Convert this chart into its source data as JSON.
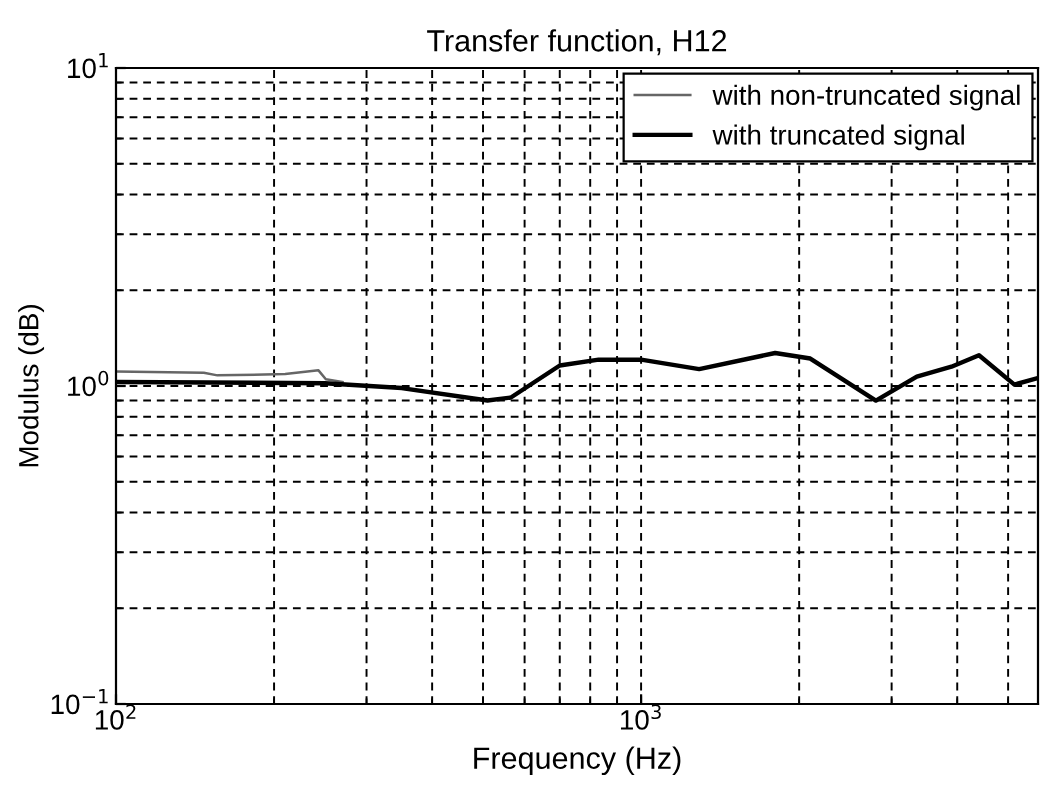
{
  "chart_data": {
    "type": "line",
    "title": "Transfer function, H12",
    "xlabel": "Frequency (Hz)",
    "ylabel": "Modulus (dB)",
    "log": "xy",
    "grid": true,
    "legend": "top right",
    "line_style": "solid",
    "marker": "none",
    "xlim": [
      100,
      5700
    ],
    "ylim": [
      0.1,
      10
    ],
    "xticks": [
      {
        "value": 100,
        "label": "10$^{2}$"
      },
      {
        "value": 1000,
        "label": "10$^{3}$"
      }
    ],
    "yticks": [
      {
        "value": 0.1,
        "label": "10$^{−1}$"
      },
      {
        "value": 1,
        "label": "10$^{0}$"
      },
      {
        "value": 10,
        "label": "10$^{1}$"
      }
    ],
    "series": [
      {
        "name": "with non-truncated signal",
        "color": "#666666",
        "x": [
          100,
          147,
          156,
          210,
          243,
          251,
          270
        ],
        "values": [
          1.11,
          1.1,
          1.08,
          1.09,
          1.12,
          1.05,
          1.03
        ]
      },
      {
        "name": "with truncated signal",
        "color": "#000000",
        "x": [
          100,
          250,
          350,
          510,
          565,
          700,
          830,
          1000,
          1290,
          1800,
          2100,
          2800,
          3350,
          3900,
          4400,
          5140,
          5700
        ],
        "values": [
          1.03,
          1.02,
          0.985,
          0.9,
          0.92,
          1.16,
          1.21,
          1.21,
          1.13,
          1.27,
          1.22,
          0.9,
          1.07,
          1.15,
          1.25,
          1.01,
          1.06
        ]
      }
    ]
  }
}
